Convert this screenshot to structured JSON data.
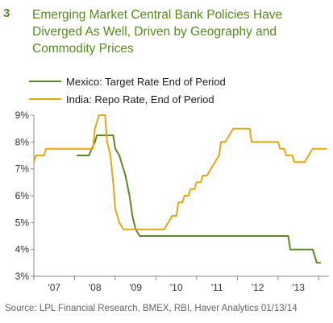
{
  "header": {
    "number": "3",
    "title": "Emerging Market Central Bank Policies Have Diverged As Well, Driven by Geography and Commodity Prices"
  },
  "footer": {
    "source": "Source: LPL Financial Research, BMEX, RBI, Haver Analytics  01/13/14"
  },
  "colors": {
    "mexico": "#5a8a1c",
    "india": "#e3a812",
    "axis": "#888888"
  },
  "chart_data": {
    "type": "line",
    "title": "Emerging Market Central Bank Policies Have Diverged As Well, Driven by Geography and Commodity Prices",
    "xlabel": "",
    "ylabel": "",
    "xlim": [
      2006.5,
      2013.75
    ],
    "ylim": [
      3,
      9
    ],
    "x_ticks": [
      {
        "value": 2007,
        "label": "'07"
      },
      {
        "value": 2008,
        "label": "'08"
      },
      {
        "value": 2009,
        "label": "'09"
      },
      {
        "value": 2010,
        "label": "'10"
      },
      {
        "value": 2011,
        "label": "'11"
      },
      {
        "value": 2012,
        "label": "'12"
      },
      {
        "value": 2013,
        "label": "'13"
      }
    ],
    "y_ticks": [
      {
        "value": 9,
        "label": "9%"
      },
      {
        "value": 8,
        "label": "8%"
      },
      {
        "value": 7,
        "label": "7%"
      },
      {
        "value": 6,
        "label": "6%"
      },
      {
        "value": 5,
        "label": "5%"
      },
      {
        "value": 4,
        "label": "4%"
      },
      {
        "value": 3,
        "label": "3%"
      }
    ],
    "grid": false,
    "legend_position": "top-left",
    "series": [
      {
        "name": "Mexico: Target Rate",
        "legend_suffix": "End of Period",
        "color": "#5a8a1c",
        "points": [
          [
            2007.55,
            7.5
          ],
          [
            2007.85,
            7.5
          ],
          [
            2008.0,
            8.0
          ],
          [
            2008.05,
            8.25
          ],
          [
            2008.45,
            8.25
          ],
          [
            2008.5,
            7.75
          ],
          [
            2008.6,
            7.5
          ],
          [
            2008.75,
            6.75
          ],
          [
            2008.85,
            6.0
          ],
          [
            2008.92,
            5.25
          ],
          [
            2009.0,
            4.75
          ],
          [
            2009.1,
            4.5
          ],
          [
            2012.75,
            4.5
          ],
          [
            2012.8,
            4.0
          ],
          [
            2013.35,
            4.0
          ],
          [
            2013.45,
            3.5
          ],
          [
            2013.55,
            3.5
          ]
        ]
      },
      {
        "name": "India: Repo Rate,",
        "legend_suffix": "End of Period",
        "color": "#e3a812",
        "points": [
          [
            2006.5,
            7.25
          ],
          [
            2006.55,
            7.5
          ],
          [
            2006.75,
            7.5
          ],
          [
            2006.8,
            7.75
          ],
          [
            2007.95,
            7.75
          ],
          [
            2008.0,
            8.5
          ],
          [
            2008.1,
            9.0
          ],
          [
            2008.25,
            9.0
          ],
          [
            2008.3,
            8.0
          ],
          [
            2008.38,
            7.5
          ],
          [
            2008.45,
            6.5
          ],
          [
            2008.5,
            5.5
          ],
          [
            2008.6,
            5.0
          ],
          [
            2008.7,
            4.75
          ],
          [
            2009.7,
            4.75
          ],
          [
            2009.8,
            5.0
          ],
          [
            2009.9,
            5.25
          ],
          [
            2010.0,
            5.25
          ],
          [
            2010.05,
            5.75
          ],
          [
            2010.15,
            5.75
          ],
          [
            2010.2,
            6.0
          ],
          [
            2010.3,
            6.0
          ],
          [
            2010.35,
            6.25
          ],
          [
            2010.45,
            6.25
          ],
          [
            2010.5,
            6.5
          ],
          [
            2010.6,
            6.5
          ],
          [
            2010.65,
            6.75
          ],
          [
            2010.75,
            6.75
          ],
          [
            2010.95,
            7.25
          ],
          [
            2011.05,
            7.5
          ],
          [
            2011.1,
            8.0
          ],
          [
            2011.2,
            8.0
          ],
          [
            2011.3,
            8.25
          ],
          [
            2011.4,
            8.5
          ],
          [
            2011.8,
            8.5
          ],
          [
            2011.85,
            8.0
          ],
          [
            2012.5,
            8.0
          ],
          [
            2012.55,
            7.75
          ],
          [
            2012.65,
            7.75
          ],
          [
            2012.7,
            7.5
          ],
          [
            2012.85,
            7.5
          ],
          [
            2012.9,
            7.25
          ],
          [
            2013.15,
            7.25
          ],
          [
            2013.25,
            7.5
          ],
          [
            2013.35,
            7.75
          ],
          [
            2013.7,
            7.75
          ]
        ]
      }
    ]
  }
}
